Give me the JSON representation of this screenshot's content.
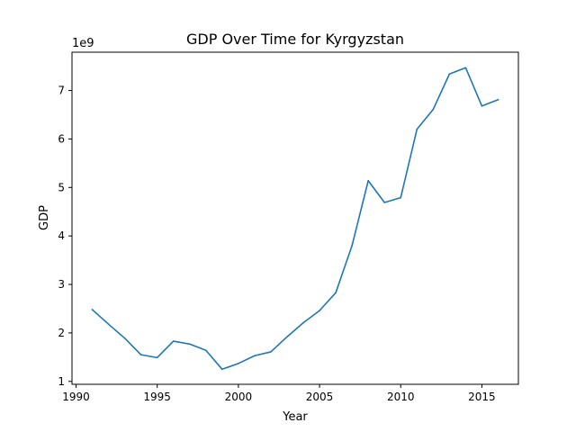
{
  "chart_data": {
    "type": "line",
    "title": "GDP Over Time for Kyrgyzstan",
    "xlabel": "Year",
    "ylabel": "GDP",
    "y_offset_label": "1e9",
    "y_scale_factor": 1000000000,
    "xlim": [
      1989.75,
      2017.25
    ],
    "ylim": [
      0.94,
      7.79
    ],
    "x_ticks": [
      1990,
      1995,
      2000,
      2005,
      2010,
      2015
    ],
    "y_ticks": [
      1,
      2,
      3,
      4,
      5,
      6,
      7
    ],
    "grid": false,
    "line_color": "#1f77b4",
    "series": [
      {
        "x": [
          1991,
          1992,
          1993,
          1994,
          1995,
          1996,
          1997,
          1998,
          1999,
          2000,
          2001,
          2002,
          2003,
          2004,
          2005,
          2006,
          2007,
          2008,
          2009,
          2010,
          2011,
          2012,
          2013,
          2014,
          2015,
          2016
        ],
        "values": [
          2.48,
          2.18,
          1.89,
          1.55,
          1.49,
          1.83,
          1.77,
          1.64,
          1.25,
          1.37,
          1.53,
          1.61,
          1.92,
          2.21,
          2.46,
          2.83,
          3.8,
          5.14,
          4.69,
          4.79,
          6.2,
          6.61,
          7.34,
          7.47,
          6.68,
          6.81
        ]
      }
    ]
  }
}
